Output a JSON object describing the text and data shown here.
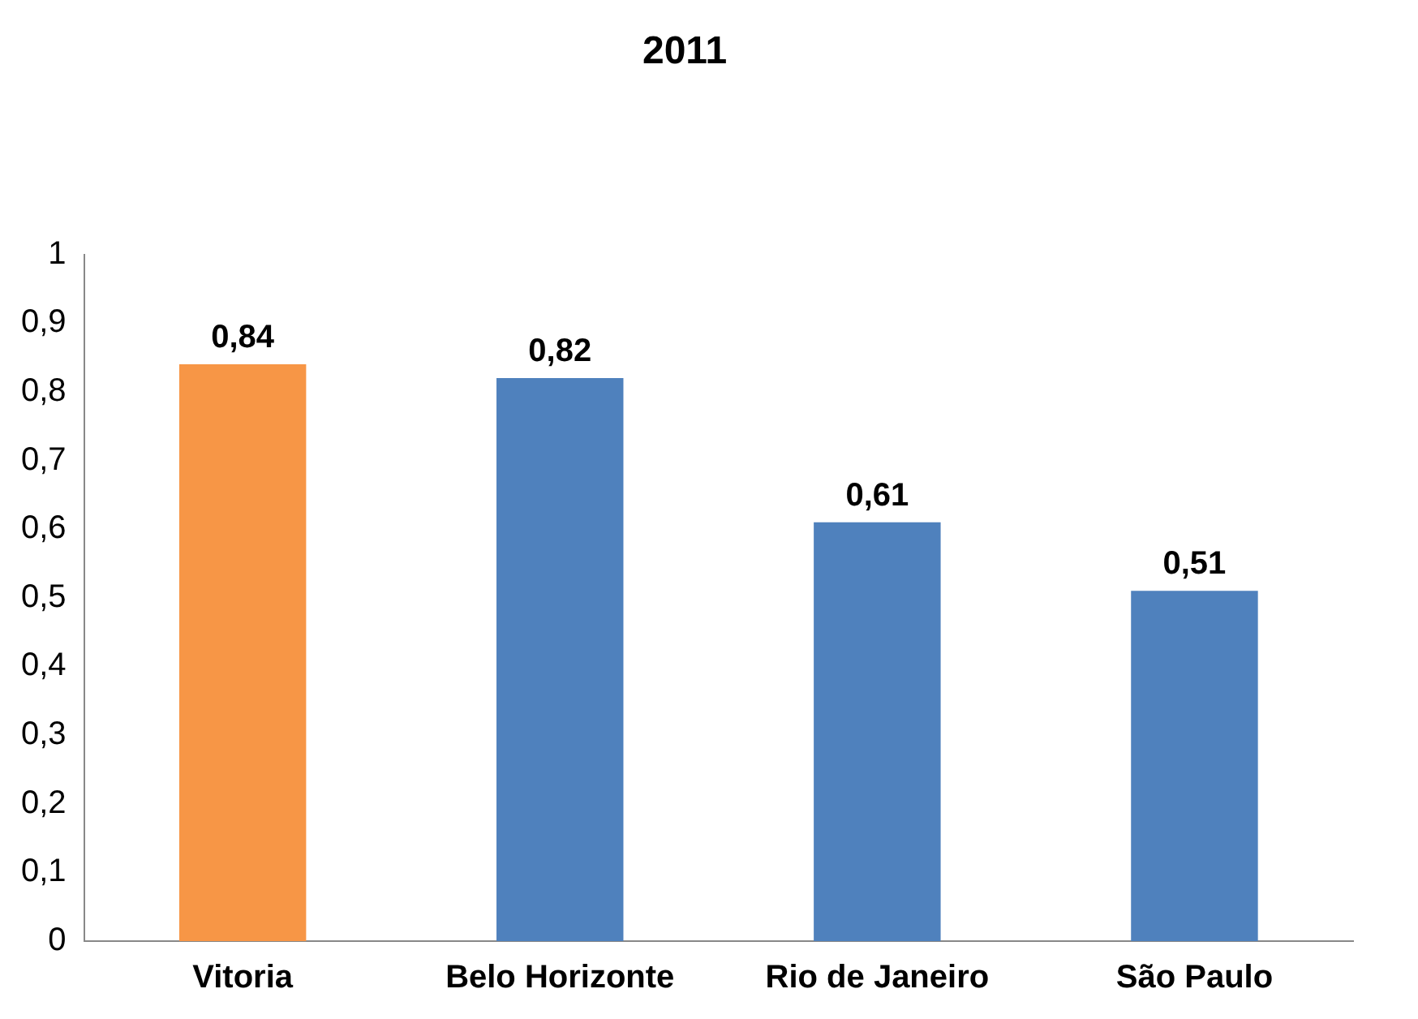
{
  "chart_data": {
    "type": "bar",
    "title": "2011",
    "categories": [
      "Vitoria",
      "Belo Horizonte",
      "Rio de Janeiro",
      "São Paulo"
    ],
    "values": [
      0.84,
      0.82,
      0.61,
      0.51
    ],
    "colors": [
      "#f79646",
      "#4f81bd",
      "#4f81bd",
      "#4f81bd"
    ],
    "ylim": [
      0,
      1
    ],
    "yticks": [
      0,
      {
        "value": 0.1,
        "label": "0,1"
      },
      {
        "value": 0.2,
        "label": "0,2"
      },
      {
        "value": 0.3,
        "label": "0,3"
      },
      {
        "value": 0.4,
        "label": "0,4"
      },
      {
        "value": 0.5,
        "label": "0,5"
      },
      {
        "value": 0.6,
        "label": "0,6"
      },
      {
        "value": 0.7,
        "label": "0,7"
      },
      {
        "value": 0.8,
        "label": "0,8"
      },
      {
        "value": 0.9,
        "label": "0,9"
      },
      1
    ],
    "value_labels": [
      "0,84",
      "0,82",
      "0,61",
      "0,51"
    ],
    "grid": false,
    "legend": false
  }
}
